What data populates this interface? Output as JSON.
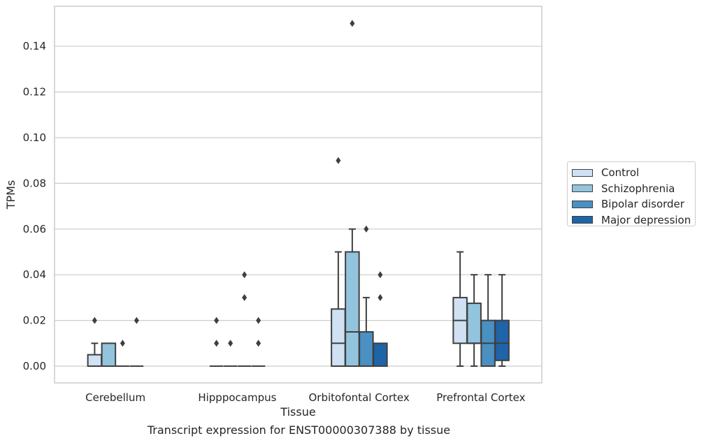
{
  "chart_data": {
    "type": "boxplot",
    "xlabel": "Tissue",
    "ylabel": "TPMs",
    "caption": "Transcript expression for ENST00000307388 by tissue",
    "categories": [
      "Cerebellum",
      "Hipppocampus",
      "Orbitofontal Cortex",
      "Prefrontal Cortex"
    ],
    "ylim": [
      -0.0075,
      0.157
    ],
    "yticks": [
      0.0,
      0.02,
      0.04,
      0.06,
      0.08,
      0.1,
      0.12,
      0.14
    ],
    "ytick_labels": [
      "0.00",
      "0.02",
      "0.04",
      "0.06",
      "0.08",
      "0.10",
      "0.12",
      "0.14"
    ],
    "grid": true,
    "legend_position": "right",
    "series": [
      {
        "name": "Control",
        "color": "#cfe1f2",
        "boxes": [
          {
            "whislo": 0,
            "q1": 0,
            "med": 0,
            "q3": 0.005,
            "whishi": 0.01,
            "fliers": [
              0.02
            ]
          },
          {
            "whislo": 0,
            "q1": 0,
            "med": 0,
            "q3": 0,
            "whishi": 0,
            "fliers": [
              0.01,
              0.02
            ]
          },
          {
            "whislo": 0,
            "q1": 0,
            "med": 0.01,
            "q3": 0.025,
            "whishi": 0.05,
            "fliers": [
              0.09
            ]
          },
          {
            "whislo": 0,
            "q1": 0.01,
            "med": 0.02,
            "q3": 0.03,
            "whishi": 0.05,
            "fliers": []
          }
        ]
      },
      {
        "name": "Schizophrenia",
        "color": "#93c4de",
        "boxes": [
          {
            "whislo": 0,
            "q1": 0,
            "med": 0,
            "q3": 0.01,
            "whishi": 0.01,
            "fliers": []
          },
          {
            "whislo": 0,
            "q1": 0,
            "med": 0,
            "q3": 0,
            "whishi": 0,
            "fliers": [
              0.01
            ]
          },
          {
            "whislo": 0,
            "q1": 0,
            "med": 0.015,
            "q3": 0.05,
            "whishi": 0.06,
            "fliers": [
              0.15
            ]
          },
          {
            "whislo": 0,
            "q1": 0.01,
            "med": 0.01,
            "q3": 0.0275,
            "whishi": 0.04,
            "fliers": []
          }
        ]
      },
      {
        "name": "Bipolar disorder",
        "color": "#4a90c2",
        "boxes": [
          {
            "whislo": 0,
            "q1": 0,
            "med": 0,
            "q3": 0,
            "whishi": 0,
            "fliers": [
              0.01
            ]
          },
          {
            "whislo": 0,
            "q1": 0,
            "med": 0,
            "q3": 0,
            "whishi": 0,
            "fliers": [
              0.03,
              0.04
            ]
          },
          {
            "whislo": 0,
            "q1": 0,
            "med": 0,
            "q3": 0.015,
            "whishi": 0.03,
            "fliers": [
              0.06
            ]
          },
          {
            "whislo": 0,
            "q1": 0,
            "med": 0.01,
            "q3": 0.02,
            "whishi": 0.04,
            "fliers": []
          }
        ]
      },
      {
        "name": "Major depression",
        "color": "#1f63a8",
        "boxes": [
          {
            "whislo": 0,
            "q1": 0,
            "med": 0,
            "q3": 0,
            "whishi": 0,
            "fliers": [
              0.02
            ]
          },
          {
            "whislo": 0,
            "q1": 0,
            "med": 0,
            "q3": 0,
            "whishi": 0,
            "fliers": [
              0.01,
              0.02
            ]
          },
          {
            "whislo": 0,
            "q1": 0,
            "med": 0,
            "q3": 0.01,
            "whishi": 0.01,
            "fliers": [
              0.03,
              0.04
            ]
          },
          {
            "whislo": 0,
            "q1": 0.0025,
            "med": 0.01,
            "q3": 0.02,
            "whishi": 0.04,
            "fliers": []
          }
        ]
      }
    ]
  }
}
